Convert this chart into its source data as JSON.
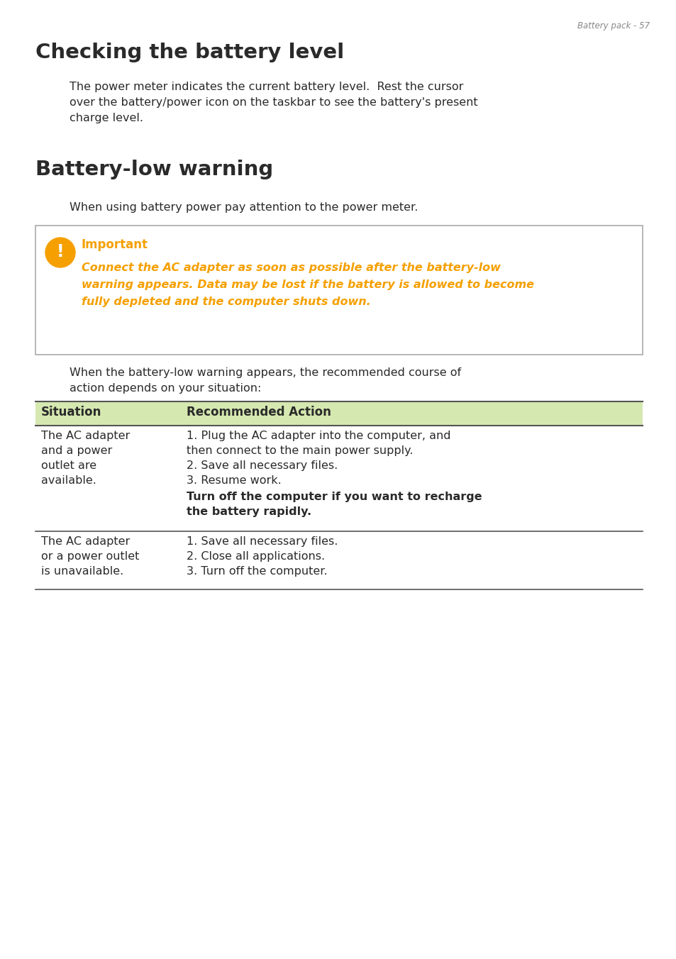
{
  "page_header": "Battery pack - 57",
  "title1": "Checking the battery level",
  "para1_line1": "The power meter indicates the current battery level.  Rest the cursor",
  "para1_line2": "over the battery/power icon on the taskbar to see the battery's present",
  "para1_line3": "charge level.",
  "title2": "Battery-low warning",
  "para2": "When using battery power pay attention to the power meter.",
  "important_label": "Important",
  "important_line1": "Connect the AC adapter as soon as possible after the battery-low",
  "important_line2": "warning appears. Data may be lost if the battery is allowed to become",
  "important_line3": "fully depleted and the computer shuts down.",
  "para3_line1": "When the battery-low warning appears, the recommended course of",
  "para3_line2": "action depends on your situation:",
  "table_header_col1": "Situation",
  "table_header_col2": "Recommended Action",
  "table_header_bg": "#d5e8b0",
  "table_row1_col1_lines": [
    "The AC adapter",
    "and a power",
    "outlet are",
    "available."
  ],
  "table_row1_col2_lines": [
    "1. Plug the AC adapter into the computer, and",
    "then connect to the main power supply.",
    "2. Save all necessary files.",
    "3. Resume work."
  ],
  "table_row1_col2_bold_lines": [
    "Turn off the computer if you want to recharge",
    "the battery rapidly."
  ],
  "table_row2_col1_lines": [
    "The AC adapter",
    "or a power outlet",
    "is unavailable."
  ],
  "table_row2_col2_lines": [
    "1. Save all necessary files.",
    "2. Close all applications.",
    "3. Turn off the computer."
  ],
  "orange_color": "#F5A000",
  "dark_orange": "#F5A000",
  "header_color": "#888888",
  "text_color": "#2a2a2a",
  "table_text_color": "#2a2a2a",
  "bg_color": "#ffffff",
  "border_color": "#aaaaaa",
  "table_line_color": "#555555"
}
